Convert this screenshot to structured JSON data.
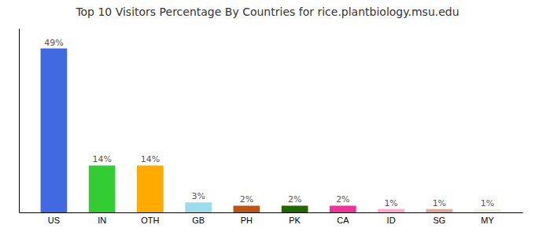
{
  "chart_data": {
    "type": "bar",
    "title": "Top 10 Visitors Percentage By Countries for rice.plantbiology.msu.edu",
    "categories": [
      "US",
      "IN",
      "OTH",
      "GB",
      "PH",
      "PK",
      "CA",
      "ID",
      "SG",
      "MY"
    ],
    "values": [
      49,
      14,
      14,
      3,
      2,
      2,
      2,
      1,
      1,
      1
    ],
    "value_labels": [
      "49%",
      "14%",
      "14%",
      "3%",
      "2%",
      "2%",
      "2%",
      "1%",
      "1%",
      "1%"
    ],
    "colors": [
      "#4169e1",
      "#33cc33",
      "#ffaa00",
      "#99ddee",
      "#bb5511",
      "#226600",
      "#ee3399",
      "#ffaacc",
      "#ddaa99",
      "#eeeedd"
    ],
    "ylim": [
      0,
      55
    ],
    "data_labels": true,
    "tick_labels": "x",
    "grid": false
  }
}
